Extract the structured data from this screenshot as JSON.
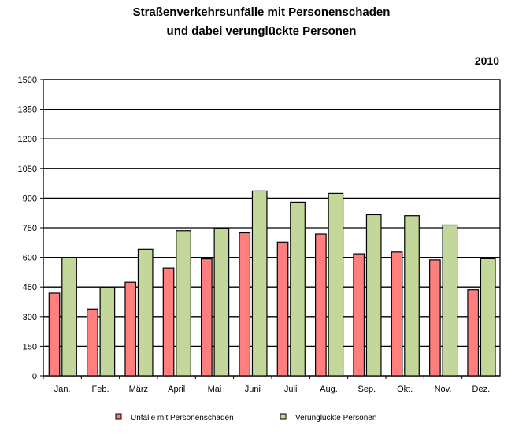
{
  "chart_data": {
    "type": "bar",
    "title": [
      "Straßenverkehrsunfälle mit Personenschaden",
      "und dabei verunglückte Personen"
    ],
    "subtitle": "2010",
    "categories": [
      "Jan.",
      "Feb.",
      "März",
      "April",
      "Mai",
      "Juni",
      "Juli",
      "Aug.",
      "Sep.",
      "Okt.",
      "Nov.",
      "Dez."
    ],
    "series": [
      {
        "name": "Unfälle mit Personenschaden",
        "color": "#ff7f7f",
        "values": [
          419,
          338,
          474,
          546,
          592,
          724,
          677,
          718,
          618,
          627,
          587,
          436
        ]
      },
      {
        "name": "Verunglückte Personen",
        "color": "#c4d79b",
        "values": [
          598,
          446,
          641,
          735,
          747,
          936,
          880,
          924,
          816,
          811,
          764,
          593
        ]
      }
    ],
    "yticks": [
      "0",
      "150",
      "300",
      "450",
      "600",
      "750",
      "900",
      "1050",
      "1200",
      "1350",
      "1500"
    ],
    "ylim": [
      0,
      1500
    ],
    "grid": true,
    "legend": "bottom"
  }
}
